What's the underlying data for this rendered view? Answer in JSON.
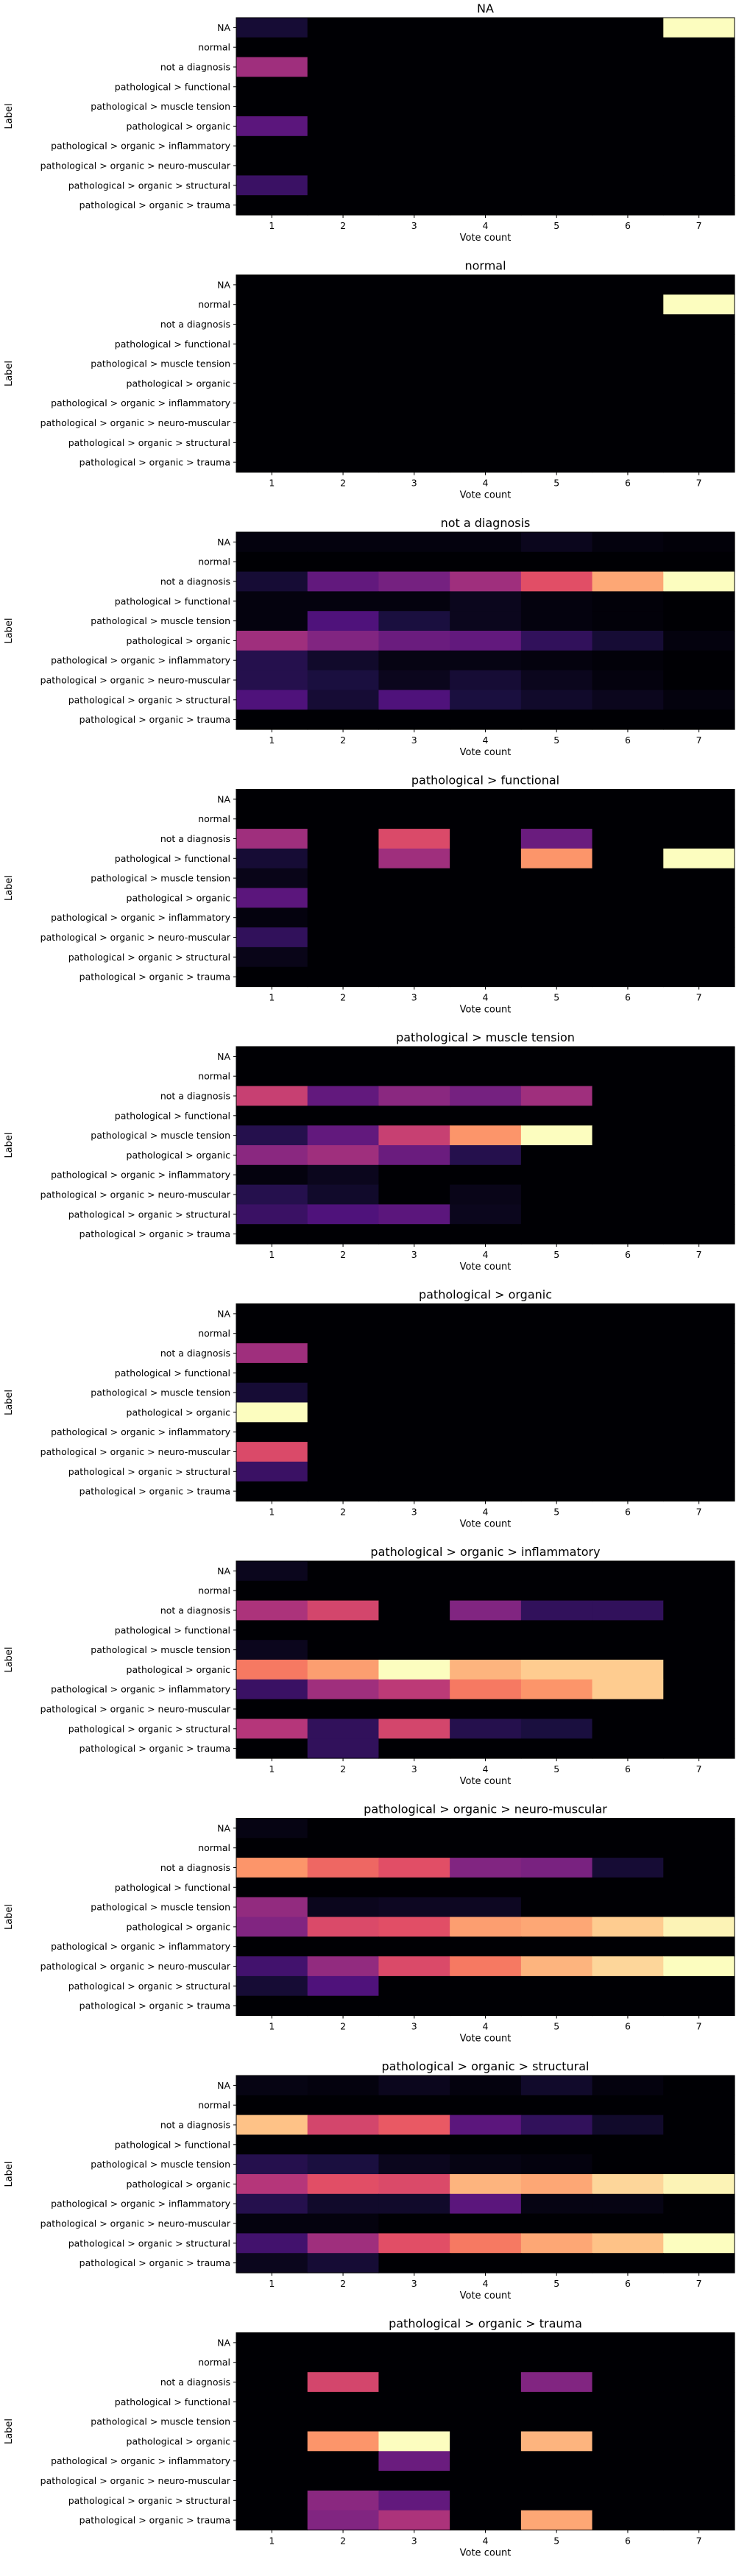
{
  "chart_data": {
    "type": "heatmap",
    "colormap": "magma",
    "xlabel": "Vote count",
    "ylabel": "Label",
    "x": [
      1,
      2,
      3,
      4,
      5,
      6,
      7
    ],
    "rows": [
      "NA",
      "normal",
      "not a diagnosis",
      "pathological > functional",
      "pathological > muscle tension",
      "pathological > organic",
      "pathological > organic > inflammatory",
      "pathological > organic > neuro-muscular",
      "pathological > organic > structural",
      "pathological > organic > trauma"
    ],
    "panels": [
      {
        "title": "NA",
        "intensity": [
          [
            0.1,
            0,
            0,
            0,
            0,
            0,
            1.0
          ],
          [
            0,
            0,
            0,
            0,
            0,
            0,
            0
          ],
          [
            0.45,
            0,
            0,
            0,
            0,
            0,
            0
          ],
          [
            0,
            0,
            0,
            0,
            0,
            0,
            0
          ],
          [
            0,
            0,
            0,
            0,
            0,
            0,
            0
          ],
          [
            0.28,
            0,
            0,
            0,
            0,
            0,
            0
          ],
          [
            0,
            0,
            0,
            0,
            0,
            0,
            0
          ],
          [
            0,
            0,
            0,
            0,
            0,
            0,
            0
          ],
          [
            0.2,
            0,
            0,
            0,
            0,
            0,
            0
          ],
          [
            0,
            0,
            0,
            0,
            0,
            0,
            0
          ]
        ]
      },
      {
        "title": "normal",
        "intensity": [
          [
            0,
            0,
            0,
            0,
            0,
            0,
            0
          ],
          [
            0,
            0,
            0,
            0,
            0,
            0,
            1.0
          ],
          [
            0,
            0,
            0,
            0,
            0,
            0,
            0
          ],
          [
            0,
            0,
            0,
            0,
            0,
            0,
            0
          ],
          [
            0,
            0,
            0,
            0,
            0,
            0,
            0
          ],
          [
            0,
            0,
            0,
            0,
            0,
            0,
            0
          ],
          [
            0,
            0,
            0,
            0,
            0,
            0,
            0
          ],
          [
            0,
            0,
            0,
            0,
            0,
            0,
            0
          ],
          [
            0,
            0,
            0,
            0,
            0,
            0,
            0
          ],
          [
            0,
            0,
            0,
            0,
            0,
            0,
            0
          ]
        ]
      },
      {
        "title": "not a diagnosis",
        "intensity": [
          [
            0.02,
            0.02,
            0.02,
            0.02,
            0.05,
            0.02,
            0.01
          ],
          [
            0,
            0,
            0,
            0,
            0,
            0,
            0
          ],
          [
            0.1,
            0.3,
            0.35,
            0.45,
            0.62,
            0.82,
            1.0
          ],
          [
            0.02,
            0.02,
            0.02,
            0.05,
            0.02,
            0.01,
            0
          ],
          [
            0.02,
            0.25,
            0.12,
            0.05,
            0.02,
            0.01,
            0
          ],
          [
            0.45,
            0.38,
            0.32,
            0.3,
            0.18,
            0.1,
            0.02
          ],
          [
            0.15,
            0.08,
            0.03,
            0.03,
            0.02,
            0.01,
            0
          ],
          [
            0.15,
            0.12,
            0.05,
            0.1,
            0.05,
            0.02,
            0
          ],
          [
            0.25,
            0.1,
            0.25,
            0.12,
            0.08,
            0.05,
            0.02
          ],
          [
            0,
            0,
            0,
            0,
            0,
            0,
            0
          ]
        ]
      },
      {
        "title": "pathological > functional",
        "intensity": [
          [
            0,
            0,
            0,
            0,
            0,
            0,
            0
          ],
          [
            0,
            0,
            0,
            0,
            0,
            0,
            0
          ],
          [
            0.45,
            0,
            0.6,
            0,
            0.32,
            0,
            0
          ],
          [
            0.1,
            0,
            0.45,
            0,
            0.78,
            0,
            1.0
          ],
          [
            0.04,
            0,
            0,
            0,
            0,
            0,
            0
          ],
          [
            0.28,
            0,
            0,
            0,
            0,
            0,
            0
          ],
          [
            0.02,
            0,
            0,
            0,
            0,
            0,
            0
          ],
          [
            0.18,
            0,
            0,
            0,
            0,
            0,
            0
          ],
          [
            0.04,
            0,
            0,
            0,
            0,
            0,
            0
          ],
          [
            0,
            0,
            0,
            0,
            0,
            0,
            0
          ]
        ]
      },
      {
        "title": "pathological > muscle tension",
        "intensity": [
          [
            0,
            0,
            0,
            0,
            0,
            0,
            0
          ],
          [
            0,
            0,
            0,
            0,
            0,
            0,
            0
          ],
          [
            0.55,
            0.3,
            0.4,
            0.35,
            0.45,
            0,
            0
          ],
          [
            0,
            0,
            0,
            0,
            0,
            0,
            0
          ],
          [
            0.15,
            0.3,
            0.55,
            0.78,
            1.0,
            0,
            0
          ],
          [
            0.4,
            0.45,
            0.32,
            0.15,
            0,
            0,
            0
          ],
          [
            0.02,
            0.05,
            0,
            0,
            0,
            0,
            0
          ],
          [
            0.15,
            0.08,
            0,
            0.04,
            0,
            0,
            0
          ],
          [
            0.2,
            0.25,
            0.28,
            0.05,
            0,
            0,
            0
          ],
          [
            0,
            0,
            0,
            0,
            0,
            0,
            0
          ]
        ]
      },
      {
        "title": "pathological > organic",
        "intensity": [
          [
            0,
            0,
            0,
            0,
            0,
            0,
            0
          ],
          [
            0,
            0,
            0,
            0,
            0,
            0,
            0
          ],
          [
            0.45,
            0,
            0,
            0,
            0,
            0,
            0
          ],
          [
            0,
            0,
            0,
            0,
            0,
            0,
            0
          ],
          [
            0.1,
            0,
            0,
            0,
            0,
            0,
            0
          ],
          [
            1.0,
            0,
            0,
            0,
            0,
            0,
            0
          ],
          [
            0,
            0,
            0,
            0,
            0,
            0,
            0
          ],
          [
            0.6,
            0,
            0,
            0,
            0,
            0,
            0
          ],
          [
            0.2,
            0,
            0,
            0,
            0,
            0,
            0
          ],
          [
            0,
            0,
            0,
            0,
            0,
            0,
            0
          ]
        ]
      },
      {
        "title": "pathological > organic > inflammatory",
        "intensity": [
          [
            0.05,
            0,
            0,
            0,
            0,
            0,
            0
          ],
          [
            0,
            0,
            0,
            0,
            0,
            0,
            0
          ],
          [
            0.48,
            0.58,
            0,
            0.38,
            0.18,
            0.18,
            0
          ],
          [
            0,
            0,
            0,
            0,
            0,
            0,
            0
          ],
          [
            0.05,
            0,
            0,
            0,
            0,
            0,
            0
          ],
          [
            0.72,
            0.8,
            1.0,
            0.85,
            0.9,
            0.9,
            0
          ],
          [
            0.2,
            0.45,
            0.52,
            0.72,
            0.78,
            0.9,
            0
          ],
          [
            0,
            0,
            0,
            0,
            0,
            0,
            0
          ],
          [
            0.5,
            0.18,
            0.58,
            0.15,
            0.12,
            0,
            0
          ],
          [
            0,
            0.18,
            0,
            0,
            0,
            0,
            0
          ]
        ]
      },
      {
        "title": "pathological > organic > neuro-muscular",
        "intensity": [
          [
            0.03,
            0,
            0,
            0,
            0,
            0,
            0
          ],
          [
            0,
            0,
            0,
            0,
            0,
            0,
            0
          ],
          [
            0.78,
            0.68,
            0.62,
            0.38,
            0.36,
            0.1,
            0
          ],
          [
            0,
            0,
            0,
            0,
            0,
            0,
            0
          ],
          [
            0.42,
            0.05,
            0.06,
            0.06,
            0,
            0,
            0
          ],
          [
            0.38,
            0.6,
            0.62,
            0.8,
            0.82,
            0.9,
            0.98
          ],
          [
            0,
            0,
            0,
            0,
            0,
            0,
            0
          ],
          [
            0.22,
            0.42,
            0.6,
            0.72,
            0.85,
            0.92,
            1.0
          ],
          [
            0.1,
            0.25,
            0,
            0,
            0,
            0,
            0
          ],
          [
            0,
            0,
            0,
            0,
            0,
            0,
            0
          ]
        ]
      },
      {
        "title": "pathological > organic > structural",
        "intensity": [
          [
            0.03,
            0.02,
            0.05,
            0.02,
            0.08,
            0.02,
            0
          ],
          [
            0,
            0,
            0,
            0,
            0,
            0,
            0
          ],
          [
            0.88,
            0.58,
            0.65,
            0.28,
            0.18,
            0.08,
            0
          ],
          [
            0,
            0,
            0,
            0,
            0,
            0,
            0
          ],
          [
            0.15,
            0.12,
            0.05,
            0.03,
            0.02,
            0,
            0
          ],
          [
            0.5,
            0.62,
            0.6,
            0.85,
            0.82,
            0.92,
            0.98
          ],
          [
            0.15,
            0.08,
            0.08,
            0.28,
            0.03,
            0.03,
            0
          ],
          [
            0.02,
            0.02,
            0,
            0,
            0,
            0,
            0
          ],
          [
            0.22,
            0.45,
            0.62,
            0.72,
            0.82,
            0.88,
            1.0
          ],
          [
            0.05,
            0.1,
            0,
            0,
            0,
            0,
            0
          ]
        ]
      },
      {
        "title": "pathological > organic > trauma",
        "intensity": [
          [
            0,
            0,
            0,
            0,
            0,
            0,
            0
          ],
          [
            0,
            0,
            0,
            0,
            0,
            0,
            0
          ],
          [
            0,
            0.58,
            0,
            0,
            0.38,
            0,
            0
          ],
          [
            0,
            0,
            0,
            0,
            0,
            0,
            0
          ],
          [
            0,
            0,
            0,
            0,
            0,
            0,
            0
          ],
          [
            0,
            0.78,
            1.0,
            0,
            0.85,
            0,
            0
          ],
          [
            0,
            0,
            0.32,
            0,
            0,
            0,
            0
          ],
          [
            0,
            0,
            0,
            0,
            0,
            0,
            0
          ],
          [
            0,
            0.4,
            0.3,
            0,
            0,
            0,
            0
          ],
          [
            0,
            0.38,
            0.48,
            0,
            0.82,
            0,
            0
          ]
        ]
      }
    ]
  }
}
